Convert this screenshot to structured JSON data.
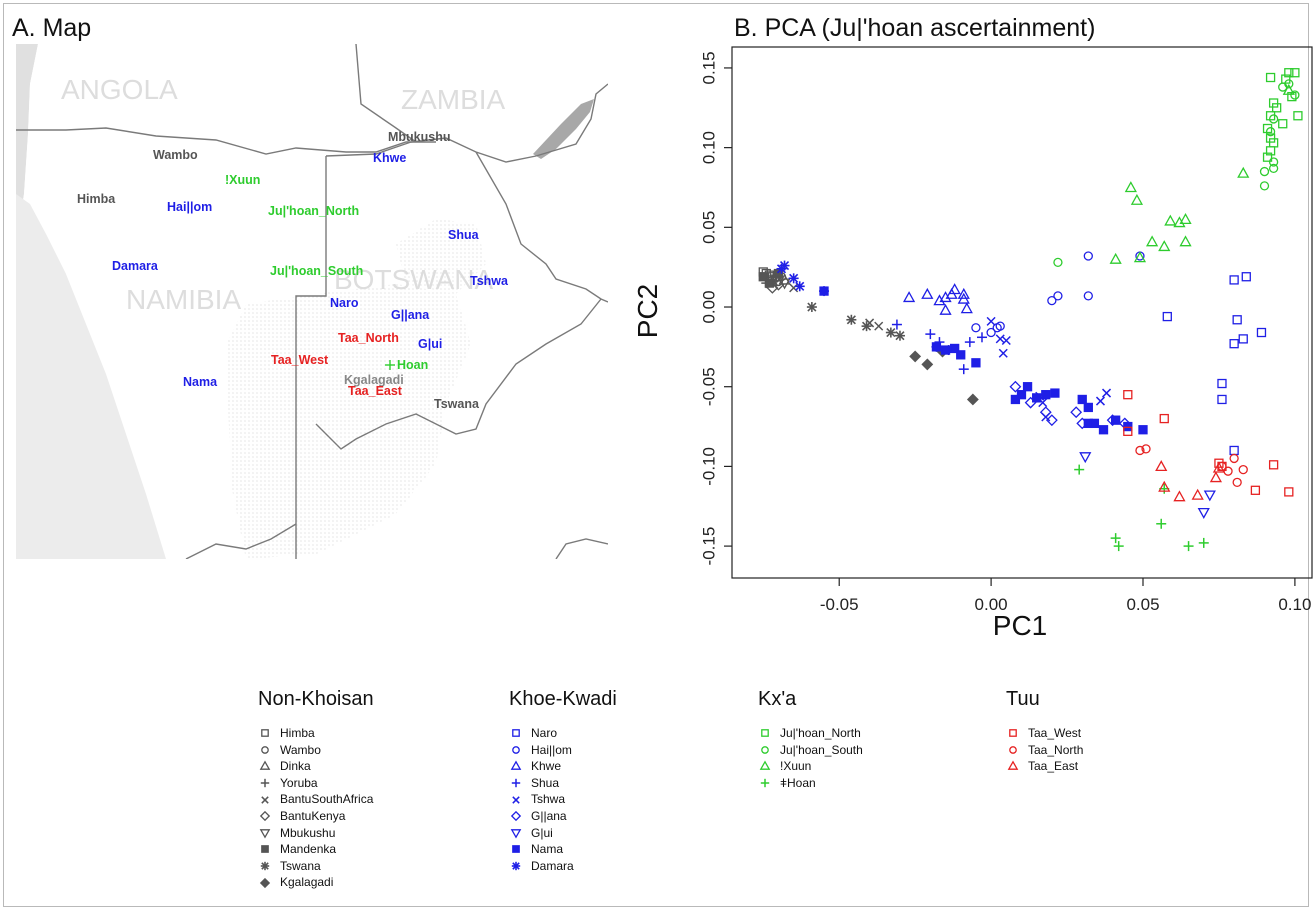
{
  "panel_a": {
    "title": "A. Map",
    "countries": [
      "ANGOLA",
      "ZAMBIA",
      "NAMIBIA",
      "BOTSWANA"
    ],
    "population_labels": [
      {
        "text": "Mbukushu",
        "group": "non"
      },
      {
        "text": "Wambo",
        "group": "non"
      },
      {
        "text": "Khwe",
        "group": "khoe"
      },
      {
        "text": "!Xuun",
        "group": "kxa"
      },
      {
        "text": "Himba",
        "group": "non"
      },
      {
        "text": "Hai||om",
        "group": "khoe"
      },
      {
        "text": "Ju|'hoan_North",
        "group": "kxa"
      },
      {
        "text": "Shua",
        "group": "khoe"
      },
      {
        "text": "Damara",
        "group": "khoe"
      },
      {
        "text": "Ju|'hoan_South",
        "group": "kxa"
      },
      {
        "text": "Tshwa",
        "group": "khoe"
      },
      {
        "text": "Naro",
        "group": "khoe"
      },
      {
        "text": "G||ana",
        "group": "khoe"
      },
      {
        "text": "Taa_North",
        "group": "tuu"
      },
      {
        "text": "G|ui",
        "group": "khoe"
      },
      {
        "text": "Taa_West",
        "group": "tuu"
      },
      {
        "text": "Hoan",
        "group": "kxa"
      },
      {
        "text": "Nama",
        "group": "khoe"
      },
      {
        "text": "Kgalagadi",
        "group": "non"
      },
      {
        "text": "Taa_East",
        "group": "tuu"
      },
      {
        "text": "Tswana",
        "group": "non"
      }
    ]
  },
  "colors": {
    "non": "#555555",
    "khoe": "#1f1fe6",
    "kxa": "#2ecc2e",
    "tuu": "#e62222",
    "kgalagadi_label": "#888888",
    "country": "#dddddd",
    "border": "#7a7a7a",
    "kalahari": "#e8e8e8"
  },
  "chart_data": {
    "type": "scatter",
    "title": "B. PCA (Ju|'hoan ascertainment)",
    "xlabel": "PC1",
    "ylabel": "PC2",
    "xlim": [
      -0.082,
      0.103
    ],
    "ylim": [
      -0.165,
      0.16
    ],
    "xticks": [
      -0.05,
      0.0,
      0.05,
      0.1
    ],
    "xtick_labels": [
      "-0.05",
      "0.00",
      "0.05",
      "0.10"
    ],
    "yticks": [
      -0.15,
      -0.1,
      -0.05,
      0.0,
      0.05,
      0.1,
      0.15
    ],
    "ytick_labels": [
      "-0.15",
      "-0.10",
      "-0.05",
      "0.00",
      "0.05",
      "0.10",
      "0.15"
    ],
    "grid": false,
    "legend_position": "bottom",
    "legend_groups": [
      {
        "title": "Non-Khoisan",
        "color": "#555555",
        "items": [
          {
            "name": "Himba",
            "marker": "square"
          },
          {
            "name": "Wambo",
            "marker": "circle"
          },
          {
            "name": "Dinka",
            "marker": "triangle"
          },
          {
            "name": "Yoruba",
            "marker": "plus"
          },
          {
            "name": "BantuSouthAfrica",
            "marker": "x"
          },
          {
            "name": "BantuKenya",
            "marker": "diamond"
          },
          {
            "name": "Mbukushu",
            "marker": "triangle-down"
          },
          {
            "name": "Mandenka",
            "marker": "square-filled"
          },
          {
            "name": "Tswana",
            "marker": "asterisk"
          },
          {
            "name": "Kgalagadi",
            "marker": "diamond-filled"
          }
        ]
      },
      {
        "title": "Khoe-Kwadi",
        "color": "#1f1fe6",
        "items": [
          {
            "name": "Naro",
            "marker": "square"
          },
          {
            "name": "Hai||om",
            "marker": "circle"
          },
          {
            "name": "Khwe",
            "marker": "triangle"
          },
          {
            "name": "Shua",
            "marker": "plus"
          },
          {
            "name": "Tshwa",
            "marker": "x"
          },
          {
            "name": "G||ana",
            "marker": "diamond"
          },
          {
            "name": "G|ui",
            "marker": "triangle-down"
          },
          {
            "name": "Nama",
            "marker": "square-filled"
          },
          {
            "name": "Damara",
            "marker": "asterisk"
          }
        ]
      },
      {
        "title": "Kx'a",
        "color": "#2ecc2e",
        "items": [
          {
            "name": "Ju|'hoan_North",
            "marker": "square"
          },
          {
            "name": "Ju|'hoan_South",
            "marker": "circle"
          },
          {
            "name": "!Xuun",
            "marker": "triangle"
          },
          {
            "name": "ǂHoan",
            "marker": "plus"
          }
        ]
      },
      {
        "title": "Tuu",
        "color": "#e62222",
        "items": [
          {
            "name": "Taa_West",
            "marker": "square"
          },
          {
            "name": "Taa_North",
            "marker": "circle"
          },
          {
            "name": "Taa_East",
            "marker": "triangle"
          }
        ]
      }
    ],
    "series": [
      {
        "name": "Himba",
        "color": "#555555",
        "marker": "square",
        "points": [
          [
            -0.075,
            0.022
          ],
          [
            -0.073,
            0.02
          ],
          [
            -0.072,
            0.019
          ],
          [
            -0.074,
            0.021
          ]
        ]
      },
      {
        "name": "Wambo",
        "color": "#555555",
        "marker": "circle",
        "points": [
          [
            -0.071,
            0.018
          ],
          [
            -0.07,
            0.016
          ],
          [
            -0.073,
            0.017
          ],
          [
            -0.069,
            0.019
          ]
        ]
      },
      {
        "name": "Dinka",
        "color": "#555555",
        "marker": "triangle",
        "points": [
          [
            -0.072,
            0.016
          ],
          [
            -0.068,
            0.017
          ]
        ]
      },
      {
        "name": "Yoruba",
        "color": "#555555",
        "marker": "plus",
        "points": [
          [
            -0.074,
            0.015
          ],
          [
            -0.071,
            0.02
          ]
        ]
      },
      {
        "name": "BantuSouthAfrica",
        "color": "#555555",
        "marker": "x",
        "points": [
          [
            -0.04,
            -0.01
          ],
          [
            -0.037,
            -0.012
          ],
          [
            -0.065,
            0.012
          ]
        ]
      },
      {
        "name": "BantuKenya",
        "color": "#555555",
        "marker": "diamond",
        "points": [
          [
            -0.072,
            0.012
          ],
          [
            -0.07,
            0.014
          ]
        ]
      },
      {
        "name": "Mbukushu",
        "color": "#555555",
        "marker": "triangle-down",
        "points": [
          [
            -0.068,
            0.015
          ]
        ]
      },
      {
        "name": "Mandenka",
        "color": "#555555",
        "marker": "square-filled",
        "points": [
          [
            -0.075,
            0.019
          ],
          [
            -0.073,
            0.015
          ],
          [
            -0.07,
            0.021
          ]
        ]
      },
      {
        "name": "Tswana",
        "color": "#555555",
        "marker": "asterisk",
        "points": [
          [
            -0.059,
            0.0
          ],
          [
            -0.046,
            -0.008
          ],
          [
            -0.041,
            -0.012
          ],
          [
            -0.03,
            -0.018
          ],
          [
            -0.033,
            -0.016
          ]
        ]
      },
      {
        "name": "Kgalagadi",
        "color": "#555555",
        "marker": "diamond-filled",
        "points": [
          [
            -0.025,
            -0.031
          ],
          [
            -0.021,
            -0.036
          ],
          [
            -0.016,
            -0.028
          ],
          [
            -0.006,
            -0.058
          ]
        ]
      },
      {
        "name": "Naro",
        "color": "#1f1fe6",
        "marker": "square",
        "points": [
          [
            0.058,
            -0.006
          ],
          [
            0.08,
            0.017
          ],
          [
            0.084,
            0.019
          ],
          [
            0.081,
            -0.008
          ],
          [
            0.083,
            -0.02
          ],
          [
            0.089,
            -0.016
          ],
          [
            0.08,
            -0.023
          ],
          [
            0.076,
            -0.048
          ],
          [
            0.076,
            -0.058
          ],
          [
            0.08,
            -0.09
          ]
        ]
      },
      {
        "name": "Hai||om",
        "color": "#1f1fe6",
        "marker": "circle",
        "points": [
          [
            0.02,
            0.004
          ],
          [
            0.022,
            0.007
          ],
          [
            0.032,
            0.007
          ],
          [
            -0.005,
            -0.013
          ],
          [
            0.0,
            -0.016
          ],
          [
            0.002,
            -0.013
          ],
          [
            0.003,
            -0.012
          ],
          [
            0.032,
            0.032
          ],
          [
            0.049,
            0.032
          ]
        ]
      },
      {
        "name": "Khwe",
        "color": "#1f1fe6",
        "marker": "triangle",
        "points": [
          [
            -0.027,
            0.006
          ],
          [
            -0.021,
            0.008
          ],
          [
            -0.017,
            0.004
          ],
          [
            -0.015,
            0.006
          ],
          [
            -0.013,
            0.008
          ],
          [
            -0.012,
            0.011
          ],
          [
            -0.009,
            0.005
          ],
          [
            -0.008,
            -0.001
          ],
          [
            -0.015,
            -0.002
          ],
          [
            -0.009,
            0.008
          ]
        ]
      },
      {
        "name": "Shua",
        "color": "#1f1fe6",
        "marker": "plus",
        "points": [
          [
            -0.031,
            -0.011
          ],
          [
            -0.02,
            -0.017
          ],
          [
            -0.017,
            -0.022
          ],
          [
            -0.014,
            -0.027
          ],
          [
            -0.007,
            -0.022
          ],
          [
            -0.003,
            -0.019
          ],
          [
            -0.009,
            -0.039
          ],
          [
            -0.018,
            -0.025
          ],
          [
            -0.011,
            -0.028
          ]
        ]
      },
      {
        "name": "Tshwa",
        "color": "#1f1fe6",
        "marker": "x",
        "points": [
          [
            0.0,
            -0.009
          ],
          [
            0.003,
            -0.02
          ],
          [
            0.005,
            -0.021
          ],
          [
            0.004,
            -0.029
          ],
          [
            0.016,
            -0.056
          ],
          [
            0.017,
            -0.06
          ],
          [
            0.018,
            -0.069
          ],
          [
            0.036,
            -0.059
          ],
          [
            0.038,
            -0.054
          ]
        ]
      },
      {
        "name": "G||ana",
        "color": "#1f1fe6",
        "marker": "diamond",
        "points": [
          [
            0.008,
            -0.05
          ],
          [
            0.013,
            -0.06
          ],
          [
            0.018,
            -0.066
          ],
          [
            0.02,
            -0.071
          ],
          [
            0.028,
            -0.066
          ],
          [
            0.03,
            -0.073
          ],
          [
            0.04,
            -0.071
          ],
          [
            0.044,
            -0.073
          ]
        ]
      },
      {
        "name": "G|ui",
        "color": "#1f1fe6",
        "marker": "triangle-down",
        "points": [
          [
            0.031,
            -0.094
          ],
          [
            0.072,
            -0.118
          ],
          [
            0.07,
            -0.129
          ]
        ]
      },
      {
        "name": "Nama",
        "color": "#1f1fe6",
        "marker": "square-filled",
        "points": [
          [
            -0.055,
            0.01
          ],
          [
            -0.018,
            -0.025
          ],
          [
            -0.015,
            -0.027
          ],
          [
            -0.012,
            -0.026
          ],
          [
            -0.01,
            -0.03
          ],
          [
            -0.005,
            -0.035
          ],
          [
            0.008,
            -0.058
          ],
          [
            0.01,
            -0.055
          ],
          [
            0.012,
            -0.05
          ],
          [
            0.015,
            -0.057
          ],
          [
            0.018,
            -0.055
          ],
          [
            0.021,
            -0.054
          ],
          [
            0.03,
            -0.058
          ],
          [
            0.032,
            -0.063
          ],
          [
            0.032,
            -0.073
          ],
          [
            0.034,
            -0.073
          ],
          [
            0.037,
            -0.077
          ],
          [
            0.041,
            -0.071
          ],
          [
            0.045,
            -0.075
          ],
          [
            0.05,
            -0.077
          ]
        ]
      },
      {
        "name": "Damara",
        "color": "#1f1fe6",
        "marker": "asterisk",
        "points": [
          [
            -0.069,
            0.024
          ],
          [
            -0.068,
            0.026
          ],
          [
            -0.065,
            0.018
          ],
          [
            -0.063,
            0.013
          ],
          [
            -0.055,
            0.01
          ]
        ]
      },
      {
        "name": "Ju|'hoan_North",
        "color": "#2ecc2e",
        "marker": "square",
        "points": [
          [
            0.092,
            0.144
          ],
          [
            0.097,
            0.143
          ],
          [
            0.098,
            0.147
          ],
          [
            0.1,
            0.147
          ],
          [
            0.101,
            0.12
          ],
          [
            0.099,
            0.132
          ],
          [
            0.096,
            0.115
          ],
          [
            0.094,
            0.125
          ],
          [
            0.093,
            0.128
          ],
          [
            0.092,
            0.12
          ],
          [
            0.091,
            0.112
          ],
          [
            0.092,
            0.106
          ],
          [
            0.093,
            0.103
          ],
          [
            0.092,
            0.098
          ],
          [
            0.091,
            0.094
          ]
        ]
      },
      {
        "name": "Ju|'hoan_South",
        "color": "#2ecc2e",
        "marker": "circle",
        "points": [
          [
            0.096,
            0.138
          ],
          [
            0.1,
            0.133
          ],
          [
            0.098,
            0.14
          ],
          [
            0.093,
            0.118
          ],
          [
            0.092,
            0.11
          ],
          [
            0.093,
            0.091
          ],
          [
            0.09,
            0.085
          ],
          [
            0.09,
            0.076
          ],
          [
            0.093,
            0.087
          ],
          [
            0.022,
            0.028
          ]
        ]
      },
      {
        "name": "!Xuun",
        "color": "#2ecc2e",
        "marker": "triangle",
        "points": [
          [
            0.046,
            0.075
          ],
          [
            0.048,
            0.067
          ],
          [
            0.053,
            0.041
          ],
          [
            0.057,
            0.038
          ],
          [
            0.059,
            0.054
          ],
          [
            0.062,
            0.053
          ],
          [
            0.064,
            0.055
          ],
          [
            0.064,
            0.041
          ],
          [
            0.041,
            0.03
          ],
          [
            0.049,
            0.031
          ],
          [
            0.083,
            0.084
          ],
          [
            0.098,
            0.136
          ]
        ]
      },
      {
        "name": "ǂHoan",
        "color": "#2ecc2e",
        "marker": "plus",
        "points": [
          [
            0.029,
            -0.102
          ],
          [
            0.041,
            -0.145
          ],
          [
            0.042,
            -0.15
          ],
          [
            0.056,
            -0.136
          ],
          [
            0.057,
            -0.114
          ],
          [
            0.065,
            -0.15
          ],
          [
            0.07,
            -0.148
          ]
        ]
      },
      {
        "name": "Taa_West",
        "color": "#e62222",
        "marker": "square",
        "points": [
          [
            0.045,
            -0.055
          ],
          [
            0.045,
            -0.078
          ],
          [
            0.057,
            -0.07
          ],
          [
            0.075,
            -0.098
          ],
          [
            0.076,
            -0.1
          ],
          [
            0.087,
            -0.115
          ],
          [
            0.093,
            -0.099
          ],
          [
            0.098,
            -0.116
          ]
        ]
      },
      {
        "name": "Taa_North",
        "color": "#e62222",
        "marker": "circle",
        "points": [
          [
            0.049,
            -0.09
          ],
          [
            0.051,
            -0.089
          ],
          [
            0.076,
            -0.1
          ],
          [
            0.078,
            -0.103
          ],
          [
            0.08,
            -0.095
          ],
          [
            0.081,
            -0.11
          ],
          [
            0.083,
            -0.102
          ]
        ]
      },
      {
        "name": "Taa_East",
        "color": "#e62222",
        "marker": "triangle",
        "points": [
          [
            0.056,
            -0.1
          ],
          [
            0.057,
            -0.113
          ],
          [
            0.062,
            -0.119
          ],
          [
            0.068,
            -0.118
          ],
          [
            0.074,
            -0.107
          ],
          [
            0.075,
            -0.101
          ]
        ]
      }
    ]
  }
}
